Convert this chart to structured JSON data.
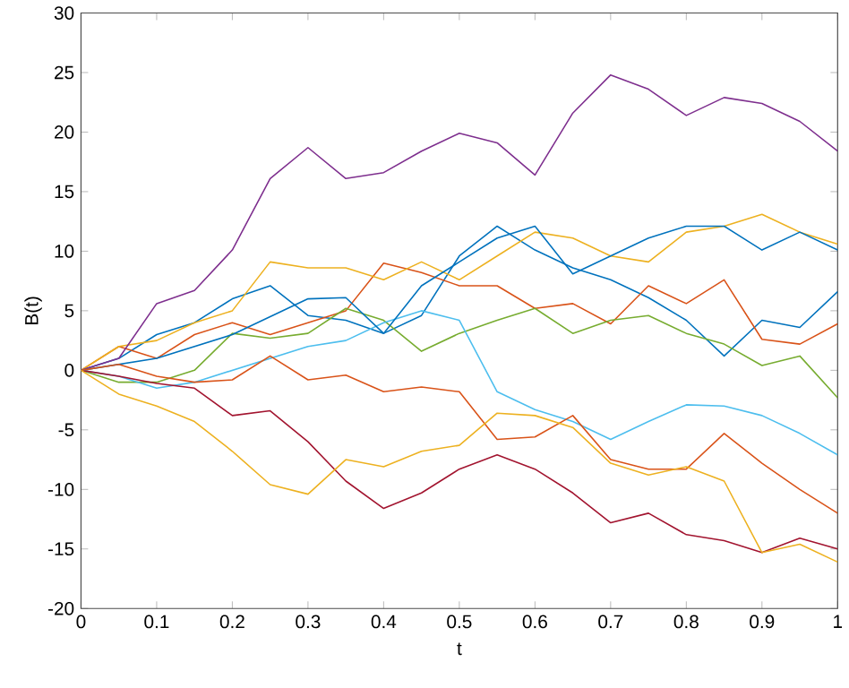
{
  "chart_data": {
    "type": "line",
    "xlabel": "t",
    "ylabel": "B(t)",
    "x": [
      0,
      0.05,
      0.1,
      0.15,
      0.2,
      0.25,
      0.3,
      0.35,
      0.4,
      0.45,
      0.5,
      0.55,
      0.6,
      0.65,
      0.7,
      0.75,
      0.8,
      0.85,
      0.9,
      0.95,
      1
    ],
    "series": [
      {
        "color": "#0072bd",
        "values": [
          0,
          1,
          3,
          4,
          6,
          7.1,
          4.6,
          4.2,
          3.1,
          4.6,
          9.6,
          12.1,
          10.1,
          8.6,
          7.6,
          6.1,
          4.2,
          1.2,
          4.2,
          3.6,
          6.6
        ]
      },
      {
        "color": "#d95319",
        "values": [
          0,
          2,
          1,
          3,
          4,
          3,
          4,
          5,
          9,
          8.2,
          7.1,
          7.1,
          5.2,
          5.6,
          3.9,
          7.1,
          5.6,
          7.6,
          2.6,
          2.2,
          3.9
        ]
      },
      {
        "color": "#edb120",
        "values": [
          0,
          2,
          2.5,
          4,
          5,
          9.1,
          8.6,
          8.6,
          7.6,
          9.1,
          7.6,
          9.6,
          11.6,
          11.1,
          9.6,
          9.1,
          11.6,
          12.1,
          13.1,
          11.6,
          10.6
        ]
      },
      {
        "color": "#7e2f8e",
        "values": [
          0,
          1,
          5.6,
          6.7,
          10.1,
          16.1,
          18.7,
          16.1,
          16.6,
          18.4,
          19.9,
          19.1,
          16.4,
          21.6,
          24.8,
          23.6,
          21.4,
          22.9,
          22.4,
          20.9,
          18.4
        ]
      },
      {
        "color": "#77ac30",
        "values": [
          0,
          -1,
          -1,
          0,
          3.1,
          2.7,
          3.1,
          5.2,
          4.2,
          1.6,
          3.1,
          4.2,
          5.2,
          3.1,
          4.2,
          4.6,
          3.1,
          2.2,
          0.4,
          1.2,
          -2.3
        ]
      },
      {
        "color": "#4dbeee",
        "values": [
          0,
          -0.5,
          -1.5,
          -1,
          0,
          1,
          2,
          2.5,
          4,
          5,
          4.2,
          -1.8,
          -3.3,
          -4.3,
          -5.8,
          -4.3,
          -2.9,
          -3,
          -3.8,
          -5.3,
          -7.1
        ]
      },
      {
        "color": "#a2142f",
        "values": [
          0,
          -0.5,
          -1.1,
          -1.5,
          -3.8,
          -3.4,
          -6,
          -9.3,
          -11.6,
          -10.3,
          -8.3,
          -7.1,
          -8.3,
          -10.3,
          -12.8,
          -12,
          -13.8,
          -14.3,
          -15.3,
          -14.1,
          -15
        ]
      },
      {
        "color": "#0072bd",
        "values": [
          0,
          0.5,
          1,
          2,
          3,
          4.5,
          6,
          6.1,
          3.1,
          7.1,
          9.1,
          11.1,
          12.1,
          8.1,
          9.6,
          11.1,
          12.1,
          12.1,
          10.1,
          11.6,
          10.1
        ]
      },
      {
        "color": "#d95319",
        "values": [
          0,
          0.5,
          -0.5,
          -1,
          -0.8,
          1.2,
          -0.8,
          -0.4,
          -1.8,
          -1.4,
          -1.8,
          -5.8,
          -5.6,
          -3.8,
          -7.5,
          -8.3,
          -8.3,
          -5.3,
          -7.8,
          -10,
          -12
        ]
      },
      {
        "color": "#edb120",
        "values": [
          0,
          -2,
          -3,
          -4.3,
          -6.8,
          -9.6,
          -10.4,
          -7.5,
          -8.1,
          -6.8,
          -6.3,
          -3.6,
          -3.8,
          -4.8,
          -7.8,
          -8.8,
          -8.1,
          -9.3,
          -15.3,
          -14.6,
          -16.1
        ]
      }
    ],
    "xlim": [
      0,
      1
    ],
    "ylim": [
      -20,
      30
    ],
    "xticks": [
      0,
      0.1,
      0.2,
      0.3,
      0.4,
      0.5,
      0.6,
      0.7,
      0.8,
      0.9,
      1
    ],
    "yticks": [
      -20,
      -15,
      -10,
      -5,
      0,
      5,
      10,
      15,
      20,
      25,
      30
    ],
    "grid": false,
    "marker": "none",
    "line_style": "solid"
  }
}
